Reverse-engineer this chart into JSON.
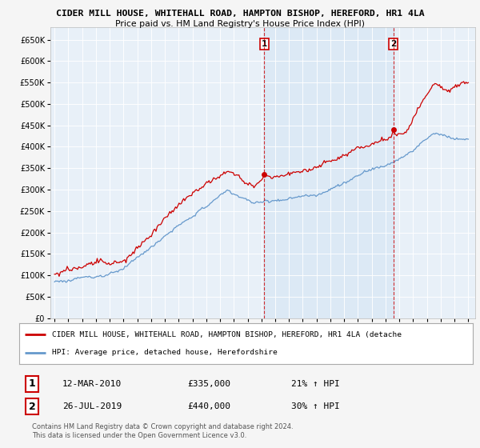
{
  "title1": "CIDER MILL HOUSE, WHITEHALL ROAD, HAMPTON BISHOP, HEREFORD, HR1 4LA",
  "title2": "Price paid vs. HM Land Registry's House Price Index (HPI)",
  "legend_label1": "CIDER MILL HOUSE, WHITEHALL ROAD, HAMPTON BISHOP, HEREFORD, HR1 4LA (detache",
  "legend_label2": "HPI: Average price, detached house, Herefordshire",
  "sale1_label": "1",
  "sale1_date": "12-MAR-2010",
  "sale1_price": "£335,000",
  "sale1_pct": "21% ↑ HPI",
  "sale2_label": "2",
  "sale2_date": "26-JUL-2019",
  "sale2_price": "£440,000",
  "sale2_pct": "30% ↑ HPI",
  "footnote1": "Contains HM Land Registry data © Crown copyright and database right 2024.",
  "footnote2": "This data is licensed under the Open Government Licence v3.0.",
  "red_color": "#cc0000",
  "blue_color": "#6699cc",
  "shade_color": "#ddeeff",
  "fig_bg": "#f5f5f5",
  "plot_bg": "#e8f0f8",
  "legend_bg": "#ffffff",
  "yticks": [
    0,
    50000,
    100000,
    150000,
    200000,
    250000,
    300000,
    350000,
    400000,
    450000,
    500000,
    550000,
    600000,
    650000
  ],
  "sale1_x": 2010.2,
  "sale1_y": 335000,
  "sale2_x": 2019.58,
  "sale2_y": 440000,
  "xmin": 1994.7,
  "xmax": 2025.5,
  "ymin": 0,
  "ymax": 680000
}
